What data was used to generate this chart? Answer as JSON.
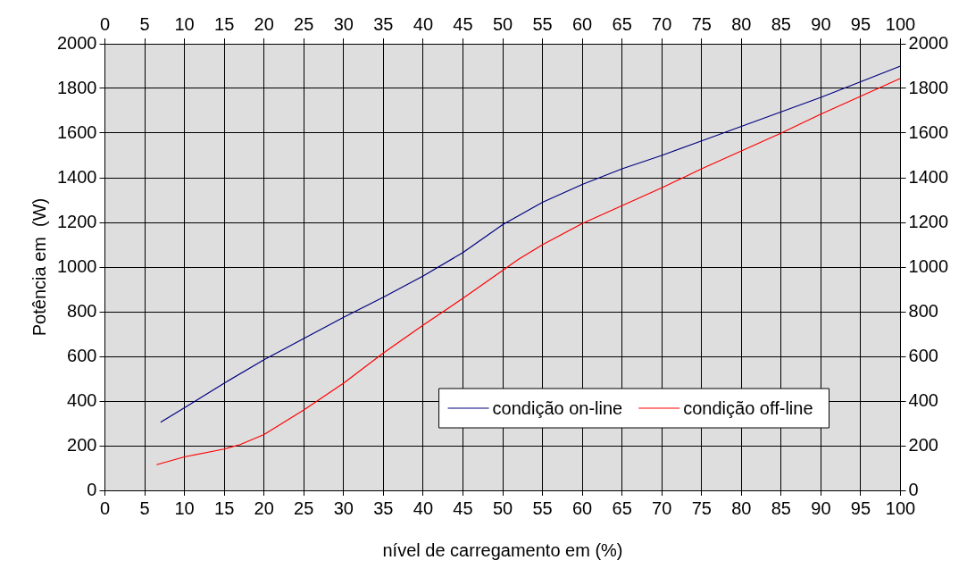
{
  "chart_data": {
    "type": "line",
    "xlabel": "nível de carregamento em (%)",
    "ylabel": "Potência em  (W)",
    "xlim": [
      0,
      100
    ],
    "xticks": [
      0,
      5,
      10,
      15,
      20,
      25,
      30,
      35,
      40,
      45,
      50,
      55,
      60,
      65,
      70,
      75,
      80,
      85,
      90,
      95,
      100
    ],
    "x2lim": [
      0,
      100
    ],
    "x2ticks": [
      0,
      5,
      10,
      15,
      20,
      25,
      30,
      35,
      40,
      45,
      50,
      55,
      60,
      65,
      70,
      75,
      80,
      85,
      90,
      95,
      100
    ],
    "ylim": [
      0,
      2000
    ],
    "yticks": [
      0,
      200,
      400,
      600,
      800,
      1000,
      1200,
      1400,
      1600,
      1800,
      2000
    ],
    "y2lim": [
      0,
      2000
    ],
    "y2ticks": [
      0,
      200,
      400,
      600,
      800,
      1000,
      1200,
      1400,
      1600,
      1800,
      2000
    ],
    "grid": true,
    "legend": "bottom right",
    "series": [
      {
        "name": "condição on-line",
        "color": "#000080",
        "x": [
          7,
          10,
          15,
          20,
          25,
          30,
          35,
          40,
          45,
          50,
          55,
          60,
          65,
          70,
          75,
          80,
          85,
          90,
          95,
          100
        ],
        "values": [
          305,
          370,
          480,
          585,
          680,
          775,
          865,
          960,
          1065,
          1190,
          1290,
          1370,
          1440,
          1500,
          1565,
          1630,
          1695,
          1760,
          1830,
          1900
        ]
      },
      {
        "name": "condição off-line",
        "color": "#ff0000",
        "x": [
          6.5,
          10,
          15,
          17,
          20,
          25,
          30,
          35,
          40,
          45,
          50,
          52,
          55,
          60,
          65,
          70,
          75,
          80,
          85,
          90,
          95,
          100
        ],
        "values": [
          115,
          150,
          185,
          205,
          250,
          360,
          480,
          615,
          740,
          860,
          985,
          1035,
          1100,
          1195,
          1275,
          1355,
          1440,
          1520,
          1600,
          1685,
          1765,
          1845
        ]
      }
    ]
  }
}
